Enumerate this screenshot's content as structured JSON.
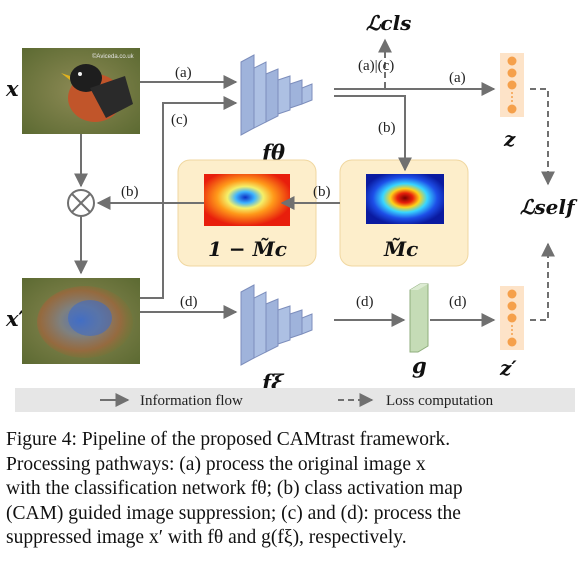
{
  "diagram": {
    "input_label": "x",
    "suppressed_label": "x′",
    "encoder_theta_label": "fθ",
    "encoder_xi_label": "fξ",
    "projector_label": "g",
    "z_label": "z",
    "z_prime_label": "z′",
    "loss_cls_label": "ℒcls",
    "loss_self_label": "ℒself",
    "cam_label": "M̃c",
    "inverse_cam_label": "1 − M̃c",
    "arrow_labels": {
      "a1": "(a)",
      "a2": "(a)",
      "ac": "(a)|(c)",
      "b1": "(b)",
      "b2": "(b)",
      "b3": "(b)",
      "c": "(c)",
      "d1": "(d)",
      "d2": "(d)",
      "d3": "(d)"
    },
    "image_watermark": "©Aviceda.co.uk",
    "legend": {
      "info_flow": "Information flow",
      "loss_comp": "Loss computation"
    },
    "colors": {
      "encoder": "#9fb3db",
      "projector": "#c5dcb6",
      "embedding": "#f5a04b",
      "cam_box": "#fdeecb",
      "legend_bar": "#e6e6e6",
      "arrow": "#707070"
    }
  },
  "caption": {
    "line1": "Figure 4: Pipeline of the proposed CAMtrast framework.",
    "line2": "Processing pathways: (a) process the original image x",
    "line3": "with the classification network fθ; (b) class activation map",
    "line4": "(CAM) guided image suppression; (c) and (d): process the",
    "line5": "suppressed image x′ with fθ and g(fξ), respectively."
  }
}
